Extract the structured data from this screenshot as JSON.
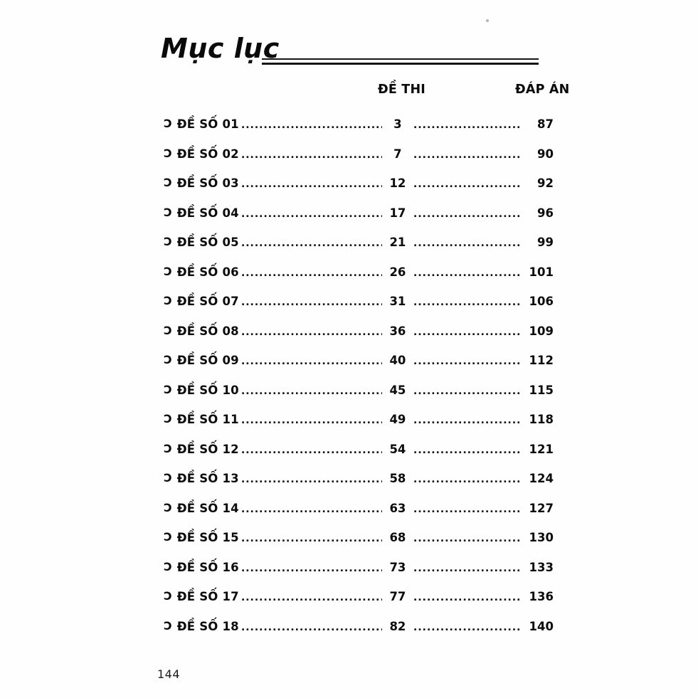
{
  "page": {
    "title": "Mục lục",
    "footer_page_number": "144"
  },
  "table": {
    "bullet_glyph": "Ɔ",
    "headers": {
      "exam": "ĐỀ THI",
      "answer": "ĐÁP ÁN"
    },
    "rows": [
      {
        "label": "ĐỀ SỐ 01",
        "exam_page": "3",
        "answer_page": "87"
      },
      {
        "label": "ĐỀ SỐ 02",
        "exam_page": "7",
        "answer_page": "90"
      },
      {
        "label": "ĐỀ SỐ 03",
        "exam_page": "12",
        "answer_page": "92"
      },
      {
        "label": "ĐỀ SỐ 04",
        "exam_page": "17",
        "answer_page": "96"
      },
      {
        "label": "ĐỀ SỐ 05",
        "exam_page": "21",
        "answer_page": "99"
      },
      {
        "label": "ĐỀ SỐ 06",
        "exam_page": "26",
        "answer_page": "101"
      },
      {
        "label": "ĐỀ SỐ 07",
        "exam_page": "31",
        "answer_page": "106"
      },
      {
        "label": "ĐỀ SỐ 08",
        "exam_page": "36",
        "answer_page": "109"
      },
      {
        "label": "ĐỀ SỐ 09",
        "exam_page": "40",
        "answer_page": "112"
      },
      {
        "label": "ĐỀ SỐ 10",
        "exam_page": "45",
        "answer_page": "115"
      },
      {
        "label": "ĐỀ SỐ 11",
        "exam_page": "49",
        "answer_page": "118"
      },
      {
        "label": "ĐỀ SỐ 12",
        "exam_page": "54",
        "answer_page": "121"
      },
      {
        "label": "ĐỀ SỐ 13",
        "exam_page": "58",
        "answer_page": "124"
      },
      {
        "label": "ĐỀ SỐ 14",
        "exam_page": "63",
        "answer_page": "127"
      },
      {
        "label": "ĐỀ SỐ 15",
        "exam_page": "68",
        "answer_page": "130"
      },
      {
        "label": "ĐỀ SỐ 16",
        "exam_page": "73",
        "answer_page": "133"
      },
      {
        "label": "ĐỀ SỐ 17",
        "exam_page": "77",
        "answer_page": "136"
      },
      {
        "label": "ĐỀ SỐ 18",
        "exam_page": "82",
        "answer_page": "140"
      }
    ]
  },
  "colors": {
    "text": "#0d0d0d",
    "background": "#ffffff",
    "rule": "#161616"
  }
}
